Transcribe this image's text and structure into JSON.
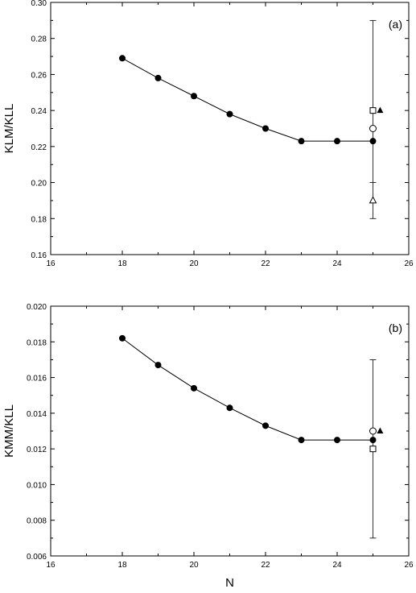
{
  "chart_data": [
    {
      "type": "line",
      "panel_label": "(a)",
      "xlabel": "",
      "ylabel": "KLM/KLL",
      "xlim": [
        16,
        26
      ],
      "ylim": [
        0.16,
        0.3
      ],
      "x_ticks": [
        "16",
        "18",
        "20",
        "22",
        "24",
        "26"
      ],
      "x_minor_ticks": [
        17,
        19,
        21,
        23,
        25
      ],
      "y_ticks": [
        "0.16",
        "0.18",
        "0.20",
        "0.22",
        "0.24",
        "0.26",
        "0.28",
        "0.30"
      ],
      "grid": false,
      "series": [
        {
          "marker": "filled-circle",
          "line": true,
          "x": [
            18,
            19,
            20,
            21,
            22,
            23,
            24,
            25
          ],
          "y": [
            0.269,
            0.258,
            0.248,
            0.238,
            0.23,
            0.223,
            0.223,
            0.223
          ]
        }
      ],
      "reference_points": [
        {
          "marker": "open-square",
          "x": 25,
          "y": 0.24
        },
        {
          "marker": "filled-triangle",
          "x": 25.2,
          "y": 0.24
        },
        {
          "marker": "open-circle",
          "x": 25,
          "y": 0.23
        },
        {
          "marker": "open-triangle",
          "x": 25,
          "y": 0.19
        }
      ],
      "error_bar": {
        "x": 25,
        "low": 0.18,
        "high": 0.29,
        "inner_cap": 0.2
      }
    },
    {
      "type": "line",
      "panel_label": "(b)",
      "xlabel": "N",
      "ylabel": "KMM/KLL",
      "xlim": [
        16,
        26
      ],
      "ylim": [
        0.006,
        0.02
      ],
      "x_ticks": [
        "16",
        "18",
        "20",
        "22",
        "24",
        "26"
      ],
      "x_minor_ticks": [
        17,
        19,
        21,
        23,
        25
      ],
      "y_ticks": [
        "0.006",
        "0.008",
        "0.010",
        "0.012",
        "0.014",
        "0.016",
        "0.018",
        "0.020"
      ],
      "grid": false,
      "series": [
        {
          "marker": "filled-circle",
          "line": true,
          "x": [
            18,
            19,
            20,
            21,
            22,
            23,
            24,
            25
          ],
          "y": [
            0.0182,
            0.0167,
            0.0154,
            0.0143,
            0.0133,
            0.0125,
            0.0125,
            0.0125
          ]
        }
      ],
      "reference_points": [
        {
          "marker": "open-circle",
          "x": 25,
          "y": 0.013
        },
        {
          "marker": "filled-triangle",
          "x": 25.2,
          "y": 0.013
        },
        {
          "marker": "open-square",
          "x": 25,
          "y": 0.012
        }
      ],
      "error_bar": {
        "x": 25,
        "low": 0.007,
        "high": 0.017
      }
    }
  ]
}
